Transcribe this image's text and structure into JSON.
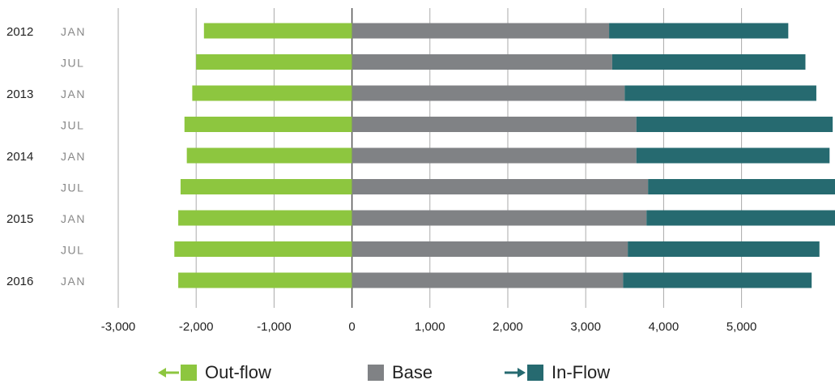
{
  "chart_data": {
    "type": "bar",
    "orientation": "horizontal",
    "stacked": true,
    "title": "",
    "xlabel": "",
    "ylabel": "",
    "xlim": [
      -3000,
      6200
    ],
    "x_ticks": [
      -3000,
      -2000,
      -1000,
      0,
      1000,
      2000,
      3000,
      4000,
      5000
    ],
    "x_tick_labels": [
      "-3,000",
      "-2,000",
      "-1,000",
      "0",
      "1,000",
      "2,000",
      "3,000",
      "4,000",
      "5,000"
    ],
    "grid": true,
    "legend_position": "bottom",
    "categories": [
      {
        "year": "2012",
        "month": "JAN"
      },
      {
        "year": "",
        "month": "JUL"
      },
      {
        "year": "2013",
        "month": "JAN"
      },
      {
        "year": "",
        "month": "JUL"
      },
      {
        "year": "2014",
        "month": "JAN"
      },
      {
        "year": "",
        "month": "JUL"
      },
      {
        "year": "2015",
        "month": "JAN"
      },
      {
        "year": "",
        "month": "JUL"
      },
      {
        "year": "2016",
        "month": "JAN"
      }
    ],
    "series": [
      {
        "name": "Out-flow",
        "color": "#8dc63f",
        "values": [
          -1900,
          -2000,
          -2050,
          -2150,
          -2120,
          -2200,
          -2230,
          -2280,
          -2230
        ]
      },
      {
        "name": "Base",
        "color": "#808285",
        "values": [
          3300,
          3340,
          3500,
          3650,
          3650,
          3800,
          3780,
          3540,
          3480
        ]
      },
      {
        "name": "In-Flow",
        "color": "#266a70",
        "values": [
          2300,
          2480,
          2460,
          2520,
          2480,
          2600,
          2600,
          2460,
          2420
        ]
      }
    ]
  },
  "legend": {
    "outflow_label": "Out-flow",
    "base_label": "Base",
    "inflow_label": "In-Flow"
  }
}
